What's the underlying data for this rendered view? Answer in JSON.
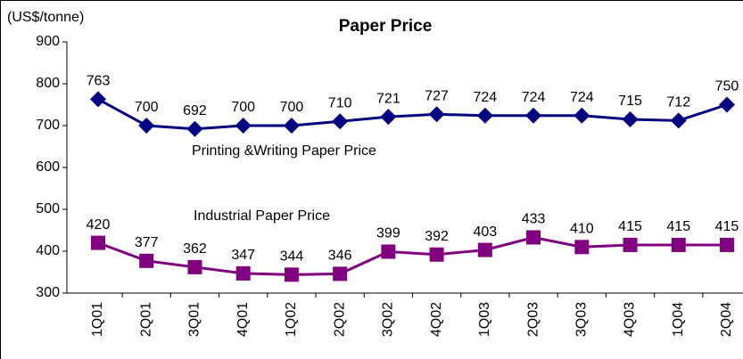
{
  "chart_data": {
    "type": "line",
    "title": "Paper Price",
    "y_label": "(US$/tonne)",
    "categories": [
      "1Q01",
      "2Q01",
      "3Q01",
      "4Q01",
      "1Q02",
      "2Q02",
      "3Q02",
      "4Q02",
      "1Q03",
      "2Q03",
      "3Q03",
      "4Q03",
      "1Q04",
      "2Q04"
    ],
    "series": [
      {
        "name": "Printing &Writing Paper Price",
        "color": "#000080",
        "marker": "diamond",
        "values": [
          763,
          700,
          692,
          700,
          700,
          710,
          721,
          727,
          724,
          724,
          724,
          715,
          712,
          750
        ]
      },
      {
        "name": "Industrial Paper Price",
        "color": "#800080",
        "marker": "square",
        "values": [
          420,
          377,
          362,
          347,
          344,
          346,
          399,
          392,
          403,
          433,
          410,
          415,
          415,
          415
        ]
      }
    ],
    "ylim": [
      300,
      900
    ],
    "yticks": [
      300,
      400,
      500,
      600,
      700,
      800,
      900
    ],
    "grid": false
  }
}
